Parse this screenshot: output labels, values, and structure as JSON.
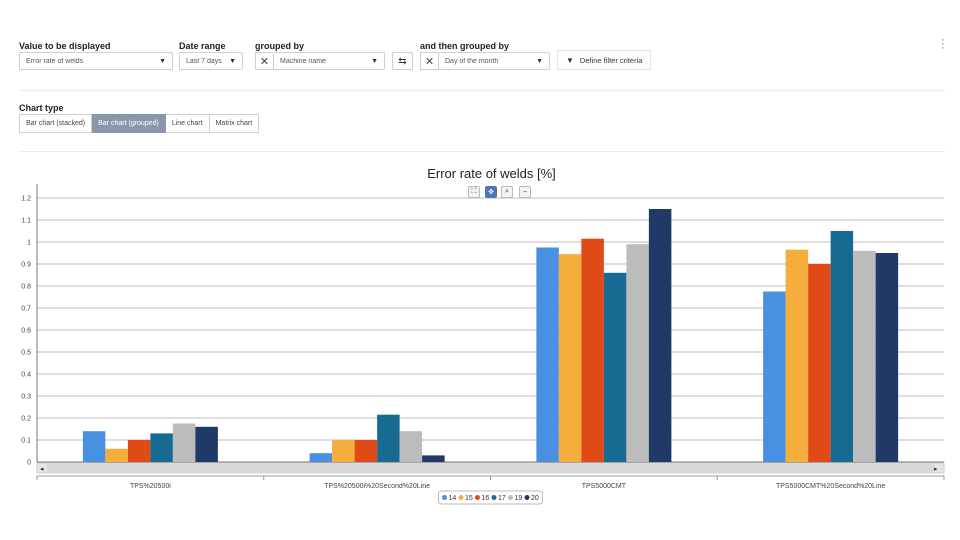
{
  "filters": {
    "value_label": "Value to be displayed",
    "value_selected": "Error rate of welds",
    "date_label": "Date range",
    "date_selected": "Last 7 days",
    "group_label": "grouped by",
    "group_selected": "Machine name",
    "then_label": "and then grouped by",
    "then_selected": "Day of the month",
    "filter_button": "Define filter criteria"
  },
  "chart_type": {
    "label": "Chart type",
    "options": [
      "Bar chart (stacked)",
      "Bar chart (grouped)",
      "Line chart",
      "Matrix chart"
    ],
    "active": "Bar chart (grouped)"
  },
  "icons": {
    "clear": "close-icon",
    "swap": "swap-icon",
    "filter": "filter-icon",
    "menu": "more-vertical-icon",
    "zoom_fit": "fit-icon",
    "pan": "pan-icon",
    "zoom_in": "zoom-in-icon",
    "zoom_out": "zoom-out-icon"
  },
  "chart_data": {
    "type": "bar",
    "title": "Error rate of welds [%]",
    "categories": [
      "TPS%20500i",
      "TPS%20500i%20Second%20Line",
      "TPS5000CMT",
      "TPS5000CMT%20Second%20Line"
    ],
    "series": [
      {
        "name": "14",
        "color": "#4a90e2",
        "values": [
          0.14,
          0.04,
          0.975,
          0.775
        ]
      },
      {
        "name": "15",
        "color": "#f5ad3d",
        "values": [
          0.06,
          0.1,
          0.945,
          0.965
        ]
      },
      {
        "name": "16",
        "color": "#e04a16",
        "values": [
          0.1,
          0.1,
          1.015,
          0.9
        ]
      },
      {
        "name": "17",
        "color": "#176a91",
        "values": [
          0.13,
          0.215,
          0.86,
          1.05
        ]
      },
      {
        "name": "19",
        "color": "#bcbcbc",
        "values": [
          0.175,
          0.14,
          0.99,
          0.96
        ]
      },
      {
        "name": "20",
        "color": "#1f3a66",
        "values": [
          0.16,
          0.03,
          1.15,
          0.95
        ]
      }
    ],
    "ylim": [
      0,
      1.2
    ],
    "yticks": [
      "0",
      "0.1",
      "0.2",
      "0.3",
      "0.4",
      "0.5",
      "0.6",
      "0.7",
      "0.8",
      "0.9",
      "1",
      "1.1",
      "1.2"
    ],
    "xlabel": "",
    "ylabel": "",
    "grid": true,
    "legend": "bottom-center"
  }
}
